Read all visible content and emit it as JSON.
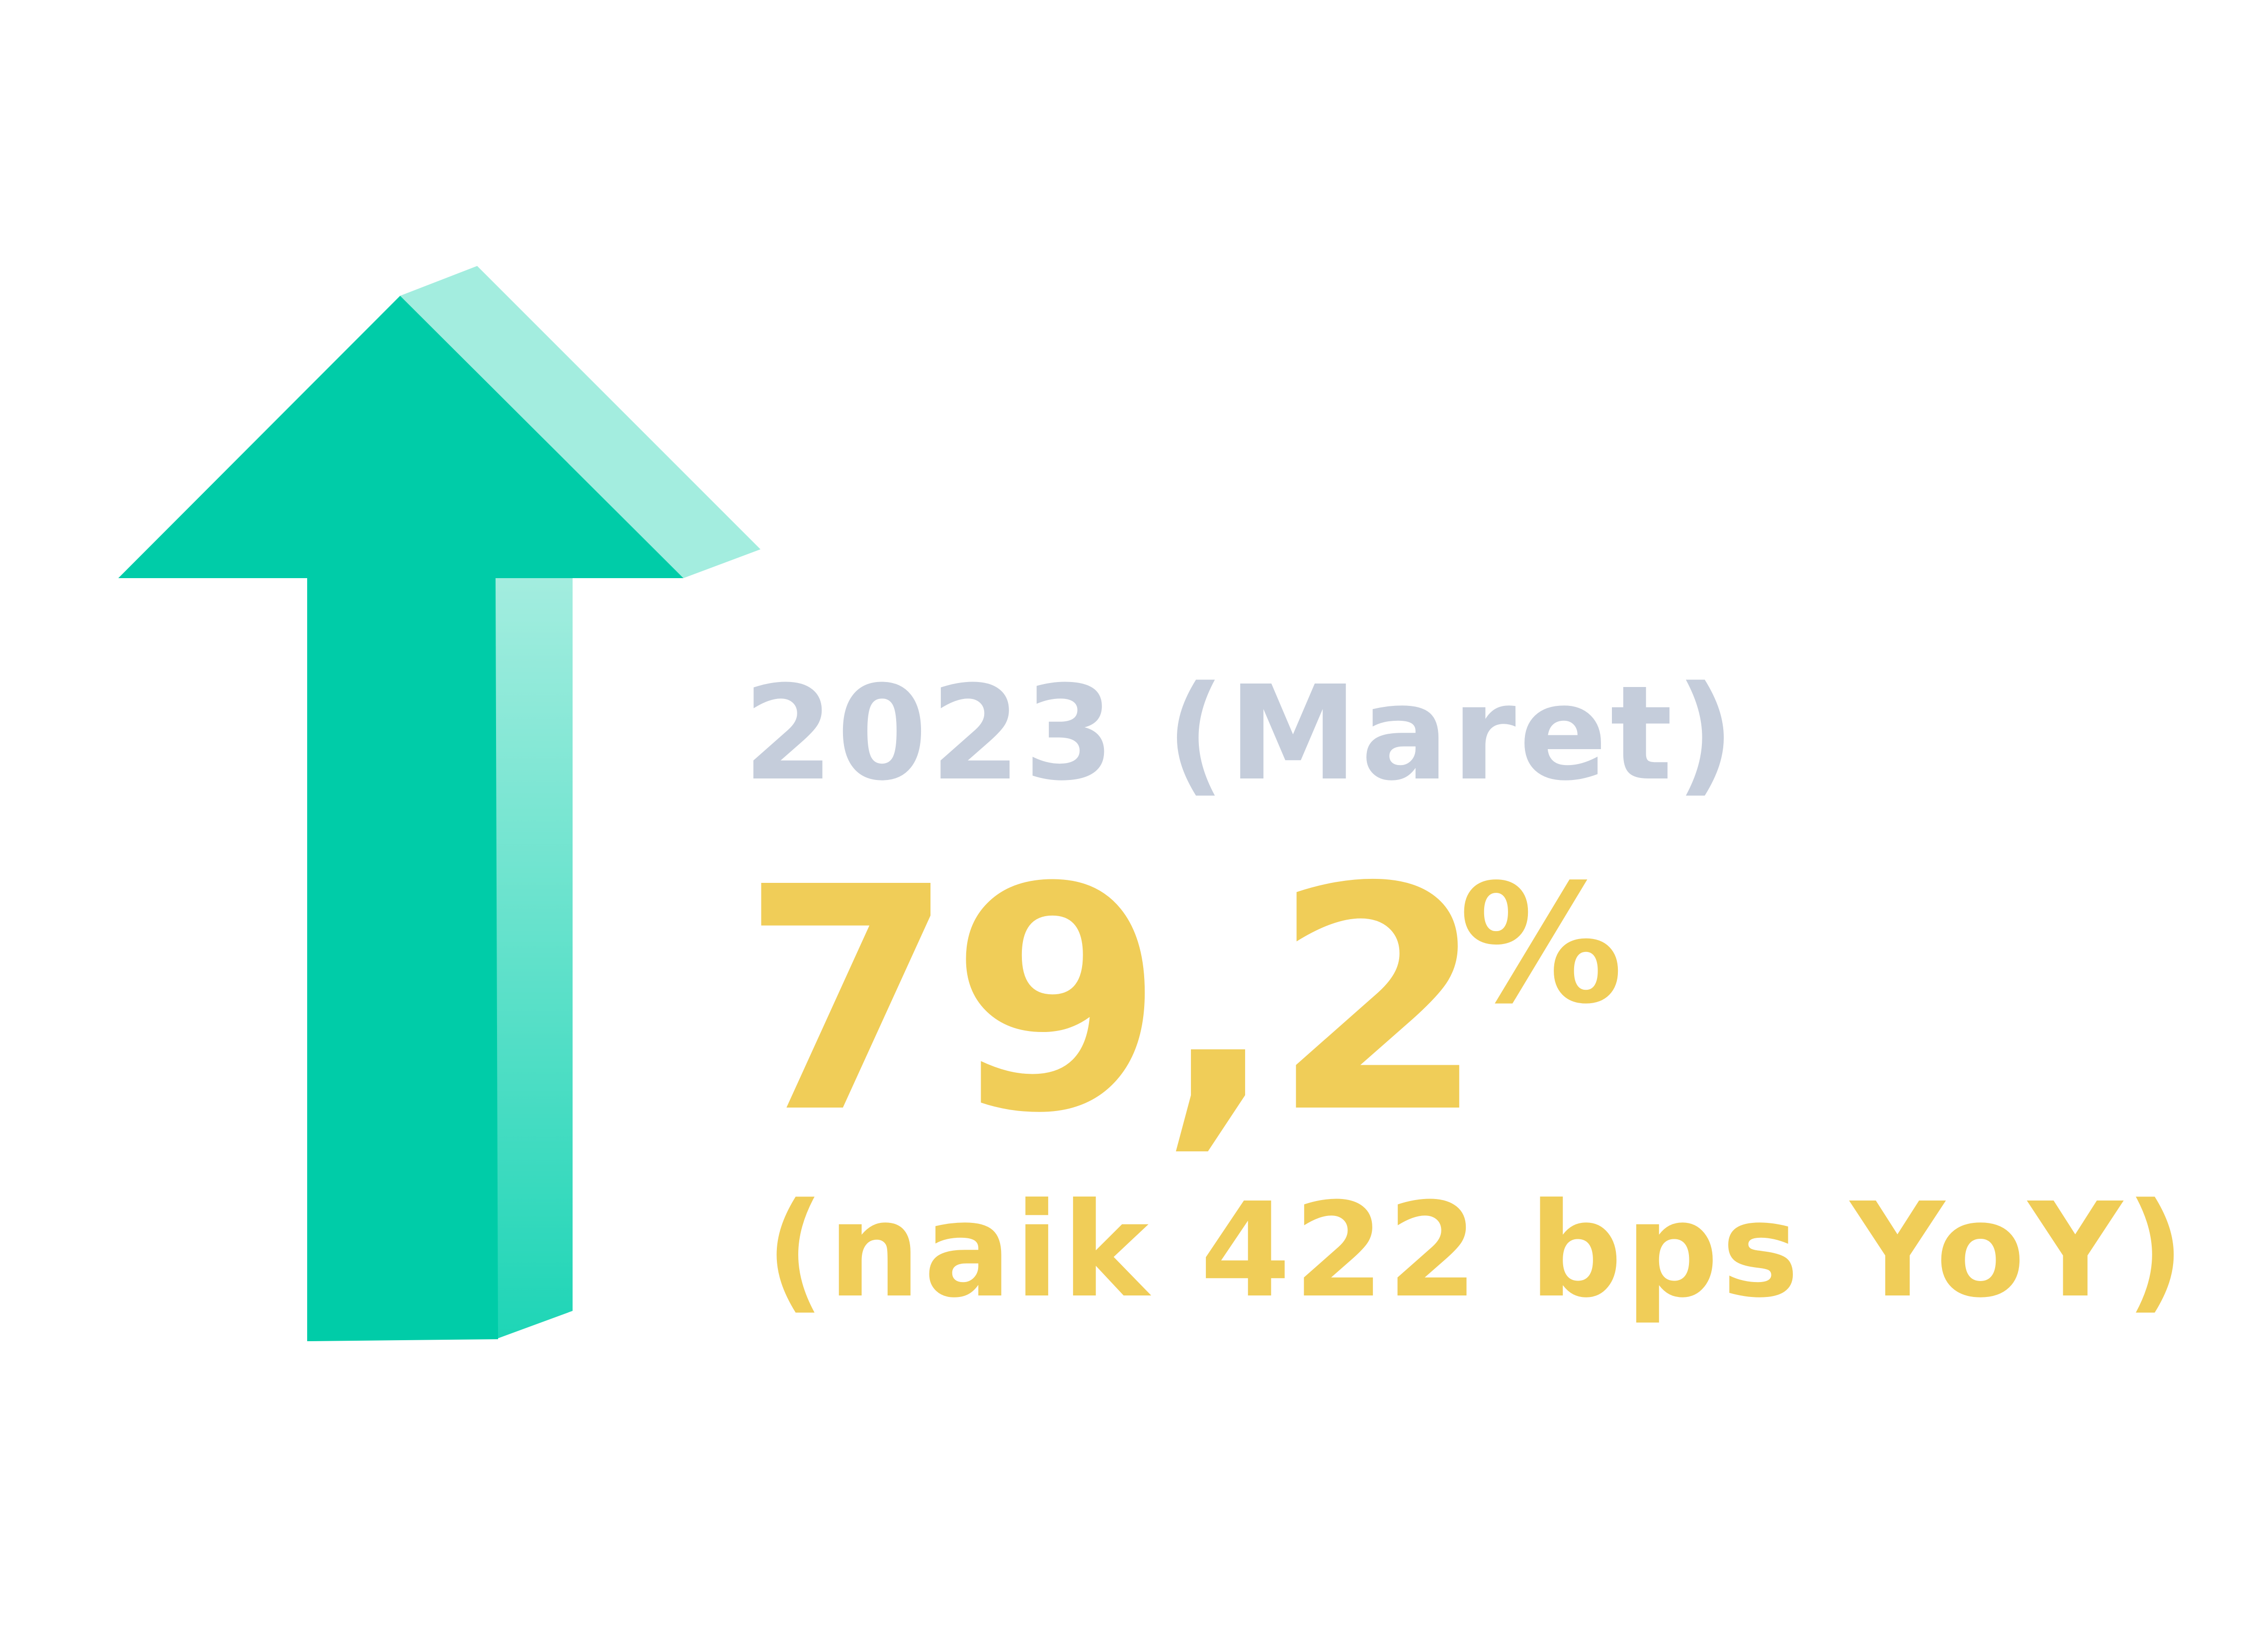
{
  "colors": {
    "arrow_front": "#00CCA8",
    "arrow_side_top": "#A3EDDF",
    "arrow_side_bottom": "#1ED5B6",
    "period_text": "#C5CDDB",
    "value_text": "#F0CD58"
  },
  "infographic": {
    "icon": "up-arrow-icon",
    "period_label": "2023 (Maret)",
    "value": "79,2",
    "value_unit": "%",
    "change_label": "(naik 422 bps YoY)"
  }
}
